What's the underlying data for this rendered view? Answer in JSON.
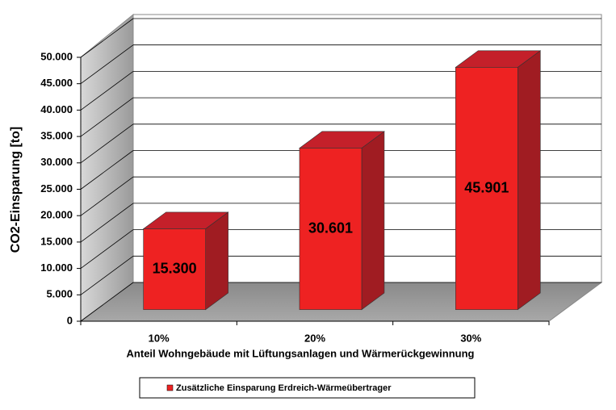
{
  "chart_data": {
    "type": "bar3d",
    "y_label": "CO2-Einsparung [to]",
    "x_label": "Anteil Wohngebäude mit Lüftungsanlagen und Wärmerückgewinnung",
    "categories": [
      "10%",
      "20%",
      "30%"
    ],
    "series": [
      {
        "name": "Zusätzliche Einsparung  Erdreich-Wärmeübertrager",
        "color": "#ee2222",
        "values": [
          15300,
          30601,
          45901
        ],
        "value_labels": [
          "15.300",
          "30.601",
          "45.901"
        ]
      }
    ],
    "ylim": [
      0,
      50000
    ],
    "yticks": [
      0,
      {
        "value": 5000,
        "label": "5.000"
      },
      {
        "value": 10000,
        "label": "10.000"
      },
      {
        "value": 15000,
        "label": "15.000"
      },
      {
        "value": 20000,
        "label": "20.000"
      },
      {
        "value": 25000,
        "label": "25.000"
      },
      {
        "value": 30000,
        "label": "30.000"
      },
      {
        "value": 35000,
        "label": "35.000"
      },
      {
        "value": 40000,
        "label": "40.000"
      },
      {
        "value": 45000,
        "label": "45.000"
      },
      {
        "value": 50000,
        "label": "50.000"
      }
    ],
    "grid": true,
    "legend": "bottom"
  }
}
